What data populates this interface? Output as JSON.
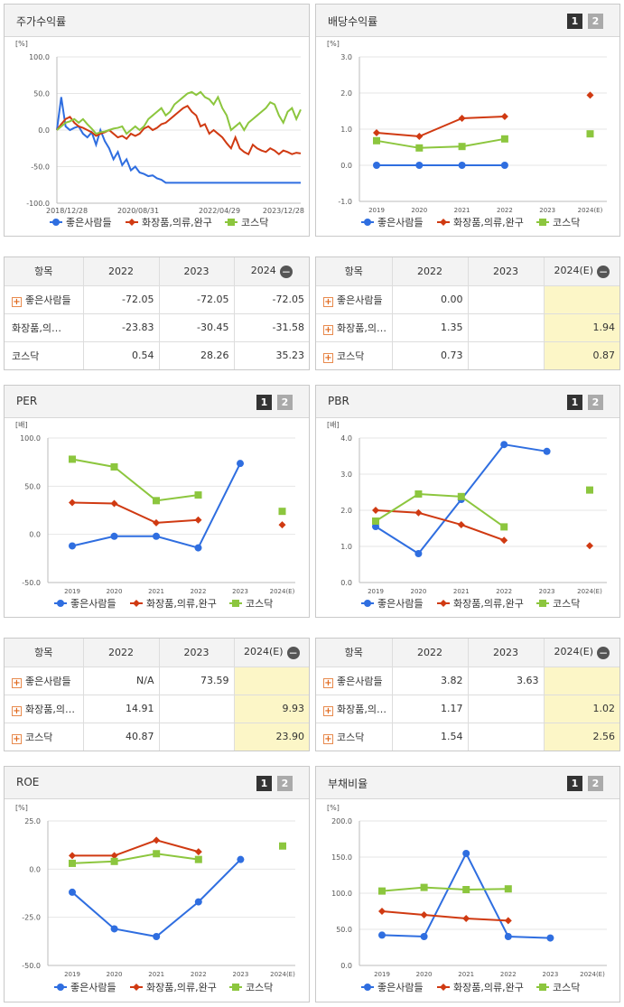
{
  "colors": {
    "s1": "#2f6ee0",
    "s2": "#d03a12",
    "s3": "#8cc63e"
  },
  "legend": [
    "좋은사람들",
    "화장품,의류,완구",
    "코스닥"
  ],
  "panels": {
    "stock": {
      "title": "주가수익률",
      "unit": "[%]"
    },
    "div": {
      "title": "배당수익률",
      "unit": "[%]",
      "btn1": "1",
      "btn2": "2"
    },
    "per": {
      "title": "PER",
      "unit": "[배]",
      "btn1": "1",
      "btn2": "2"
    },
    "pbr": {
      "title": "PBR",
      "unit": "[배]",
      "btn1": "1",
      "btn2": "2"
    },
    "roe": {
      "title": "ROE",
      "unit": "[%]",
      "btn1": "1",
      "btn2": "2"
    },
    "debt": {
      "title": "부채비율",
      "unit": "[%]",
      "btn1": "1",
      "btn2": "2"
    }
  },
  "tables": {
    "stock": {
      "head": [
        "항목",
        "2022",
        "2023",
        "2024"
      ],
      "rows": [
        {
          "label": "좋은사람들",
          "v": [
            "-72.05",
            "-72.05",
            "-72.05"
          ],
          "plus": true
        },
        {
          "label": "화장품,의…",
          "v": [
            "-23.83",
            "-30.45",
            "-31.58"
          ],
          "plus": false
        },
        {
          "label": "코스닥",
          "v": [
            "0.54",
            "28.26",
            "35.23"
          ],
          "plus": false
        }
      ]
    },
    "div": {
      "head": [
        "항목",
        "2022",
        "2023",
        "2024(E)"
      ],
      "rows": [
        {
          "label": "좋은사람들",
          "v": [
            "0.00",
            "",
            ""
          ],
          "plus": true
        },
        {
          "label": "화장품,의…",
          "v": [
            "1.35",
            "",
            "1.94"
          ],
          "plus": true
        },
        {
          "label": "코스닥",
          "v": [
            "0.73",
            "",
            "0.87"
          ],
          "plus": true
        }
      ]
    },
    "per": {
      "head": [
        "항목",
        "2022",
        "2023",
        "2024(E)"
      ],
      "rows": [
        {
          "label": "좋은사람들",
          "v": [
            "N/A",
            "73.59",
            ""
          ],
          "plus": true
        },
        {
          "label": "화장품,의…",
          "v": [
            "14.91",
            "",
            "9.93"
          ],
          "plus": true
        },
        {
          "label": "코스닥",
          "v": [
            "40.87",
            "",
            "23.90"
          ],
          "plus": true
        }
      ]
    },
    "pbr": {
      "head": [
        "항목",
        "2022",
        "2023",
        "2024(E)"
      ],
      "rows": [
        {
          "label": "좋은사람들",
          "v": [
            "3.82",
            "3.63",
            ""
          ],
          "plus": true
        },
        {
          "label": "화장품,의…",
          "v": [
            "1.17",
            "",
            "1.02"
          ],
          "plus": true
        },
        {
          "label": "코스닥",
          "v": [
            "1.54",
            "",
            "2.56"
          ],
          "plus": true
        }
      ]
    }
  },
  "chart_data": [
    {
      "id": "stock",
      "type": "line",
      "title": "주가수익률",
      "ylabel": "[%]",
      "ylim": [
        -100,
        100
      ],
      "yticks": [
        "100.0",
        "50.0",
        "0.0",
        "-50.0",
        "-100.0"
      ],
      "x_labels": [
        "2018/12/28",
        "2020/08/31",
        "2022/04/29",
        "2023/12/28"
      ],
      "series": [
        {
          "name": "좋은사람들",
          "values": [
            0,
            45,
            5,
            0,
            3,
            5,
            -5,
            -10,
            -3,
            -20,
            0,
            -15,
            -25,
            -40,
            -30,
            -48,
            -40,
            -55,
            -50,
            -58,
            -60,
            -63,
            -62,
            -66,
            -68,
            -72,
            -72,
            -72,
            -72,
            -72,
            -72,
            -72,
            -72,
            -72,
            -72,
            -72,
            -72,
            -72,
            -72,
            -72,
            -72,
            -72,
            -72,
            -72,
            -72,
            -72,
            -72,
            -72,
            -72,
            -72,
            -72,
            -72,
            -72,
            -72,
            -72,
            -72,
            -72
          ]
        },
        {
          "name": "화장품,의류,완구",
          "values": [
            0,
            8,
            15,
            18,
            10,
            5,
            3,
            0,
            -3,
            -8,
            -5,
            -3,
            0,
            -5,
            -10,
            -8,
            -12,
            -5,
            -8,
            -5,
            2,
            5,
            0,
            3,
            8,
            10,
            15,
            20,
            25,
            30,
            33,
            25,
            20,
            5,
            8,
            -5,
            0,
            -5,
            -10,
            -18,
            -25,
            -10,
            -25,
            -30,
            -33,
            -20,
            -25,
            -28,
            -30,
            -25,
            -28,
            -33,
            -28,
            -30,
            -33,
            -31,
            -32
          ]
        },
        {
          "name": "코스닥",
          "values": [
            0,
            5,
            10,
            12,
            15,
            10,
            15,
            8,
            2,
            -5,
            -3,
            -2,
            0,
            2,
            3,
            5,
            -5,
            0,
            5,
            0,
            5,
            15,
            20,
            25,
            30,
            20,
            25,
            35,
            40,
            45,
            50,
            52,
            48,
            52,
            45,
            42,
            35,
            45,
            30,
            20,
            0,
            5,
            10,
            0,
            10,
            15,
            20,
            25,
            30,
            38,
            35,
            20,
            10,
            25,
            30,
            15,
            28
          ]
        }
      ]
    },
    {
      "id": "div",
      "type": "line",
      "title": "배당수익률",
      "ylabel": "[%]",
      "ylim": [
        -1,
        3
      ],
      "yticks": [
        "3.0",
        "2.0",
        "1.0",
        "0.0",
        "-1.0"
      ],
      "categories": [
        "2019",
        "2020",
        "2021",
        "2022",
        "2023",
        "2024(E)"
      ],
      "series": [
        {
          "name": "좋은사람들",
          "values": [
            0.0,
            0.0,
            0.0,
            0.0,
            null,
            null
          ]
        },
        {
          "name": "화장품,의류,완구",
          "values": [
            0.9,
            0.8,
            1.3,
            1.35,
            null,
            1.94
          ]
        },
        {
          "name": "코스닥",
          "values": [
            0.68,
            0.48,
            0.52,
            0.73,
            null,
            0.87
          ]
        }
      ]
    },
    {
      "id": "per",
      "type": "line",
      "title": "PER",
      "ylabel": "[배]",
      "ylim": [
        -50,
        100
      ],
      "yticks": [
        "100.0",
        "50.0",
        "0.0",
        "-50.0"
      ],
      "categories": [
        "2019",
        "2020",
        "2021",
        "2022",
        "2023",
        "2024(E)"
      ],
      "series": [
        {
          "name": "좋은사람들",
          "values": [
            -12,
            -2,
            -2,
            -14,
            73.59,
            null
          ]
        },
        {
          "name": "화장품,의류,완구",
          "values": [
            33,
            32,
            12,
            14.91,
            null,
            9.93
          ]
        },
        {
          "name": "코스닥",
          "values": [
            78,
            70,
            35,
            40.87,
            null,
            23.9
          ]
        }
      ]
    },
    {
      "id": "pbr",
      "type": "line",
      "title": "PBR",
      "ylabel": "[배]",
      "ylim": [
        0,
        4
      ],
      "yticks": [
        "4.0",
        "3.0",
        "2.0",
        "1.0",
        "0.0"
      ],
      "categories": [
        "2019",
        "2020",
        "2021",
        "2022",
        "2023",
        "2024(E)"
      ],
      "series": [
        {
          "name": "좋은사람들",
          "values": [
            1.55,
            0.8,
            2.3,
            3.82,
            3.63,
            null
          ]
        },
        {
          "name": "화장품,의류,완구",
          "values": [
            2.0,
            1.93,
            1.6,
            1.17,
            null,
            1.02
          ]
        },
        {
          "name": "코스닥",
          "values": [
            1.7,
            2.45,
            2.38,
            1.54,
            null,
            2.56
          ]
        }
      ]
    },
    {
      "id": "roe",
      "type": "line",
      "title": "ROE",
      "ylabel": "[%]",
      "ylim": [
        -50,
        25
      ],
      "yticks": [
        "25.0",
        "0.0",
        "-25.0",
        "-50.0"
      ],
      "categories": [
        "2019",
        "2020",
        "2021",
        "2022",
        "2023",
        "2024(E)"
      ],
      "series": [
        {
          "name": "좋은사람들",
          "values": [
            -12,
            -31,
            -35,
            -17,
            5,
            null
          ]
        },
        {
          "name": "화장품,의류,완구",
          "values": [
            7,
            7,
            15,
            9,
            null,
            null
          ]
        },
        {
          "name": "코스닥",
          "values": [
            3,
            4,
            8,
            5,
            null,
            12
          ]
        }
      ]
    },
    {
      "id": "debt",
      "type": "line",
      "title": "부채비율",
      "ylabel": "[%]",
      "ylim": [
        0,
        200
      ],
      "yticks": [
        "200.0",
        "150.0",
        "100.0",
        "50.0",
        "0.0"
      ],
      "categories": [
        "2019",
        "2020",
        "2021",
        "2022",
        "2023",
        "2024(E)"
      ],
      "series": [
        {
          "name": "좋은사람들",
          "values": [
            42,
            40,
            155,
            40,
            38,
            null
          ]
        },
        {
          "name": "화장품,의류,완구",
          "values": [
            75,
            70,
            65,
            62,
            null,
            null
          ]
        },
        {
          "name": "코스닥",
          "values": [
            103,
            108,
            105,
            106,
            null,
            null
          ]
        }
      ]
    }
  ]
}
